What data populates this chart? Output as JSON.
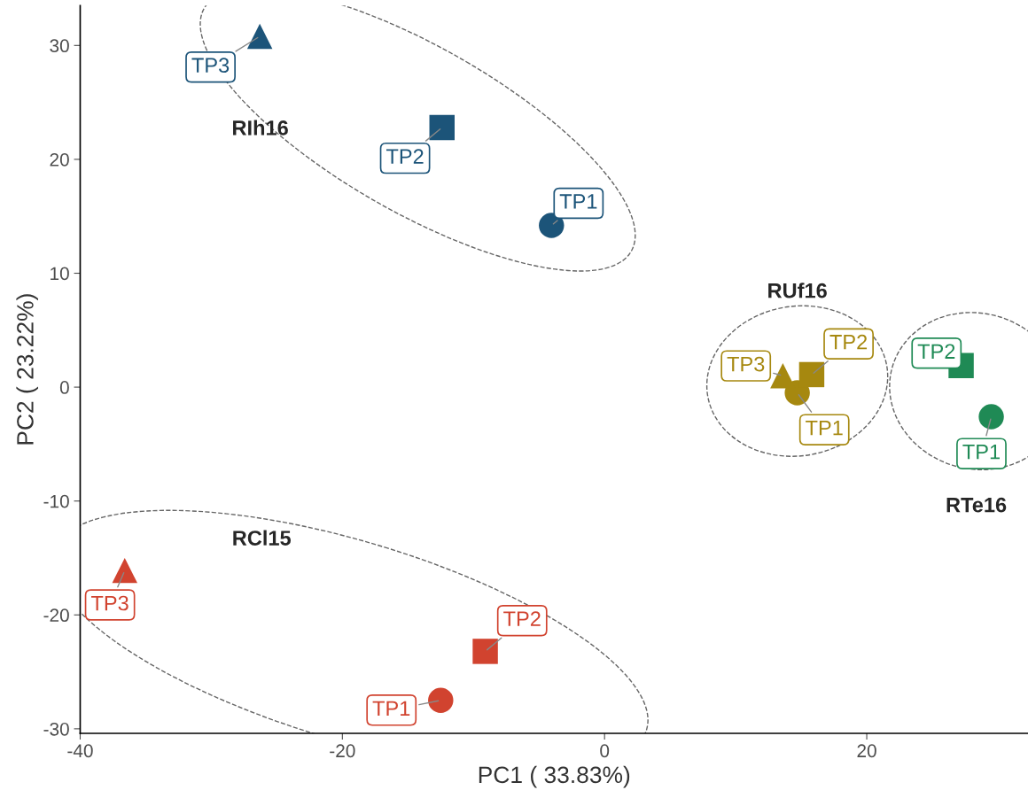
{
  "chart_data": {
    "type": "scatter",
    "xlabel": "PC1 ( 33.83%)",
    "ylabel": "PC2 ( 23.22%)",
    "xlim": [
      -40,
      32.3
    ],
    "ylim": [
      -30.4,
      33.5
    ],
    "xticks": [
      -40,
      -20,
      0,
      20
    ],
    "yticks": [
      -30,
      -20,
      -10,
      0,
      10,
      20,
      30
    ],
    "grid": false,
    "legend": false,
    "annotations": [
      "RIh16",
      "RUf16",
      "RTe16",
      "RCl15"
    ],
    "series": [
      {
        "marker": "circle",
        "x": [
          -4.05,
          14.7,
          29.5,
          -12.5
        ],
        "values": [
          14.2,
          -0.5,
          -2.6,
          -27.5
        ],
        "colors": [
          "#1c5479",
          "#a6880f",
          "#1f8a55",
          "#d1432f"
        ],
        "value_labels": [
          "TP1",
          "TP1",
          "TP1",
          "TP1"
        ]
      },
      {
        "marker": "square",
        "x": [
          -12.4,
          15.8,
          27.2,
          -9.1
        ],
        "values": [
          22.8,
          1.1,
          1.9,
          -23.2
        ],
        "colors": [
          "#1c5479",
          "#a6880f",
          "#1f8a55",
          "#d1432f"
        ],
        "value_labels": [
          "TP2",
          "TP2",
          "TP2",
          "TP2"
        ]
      },
      {
        "marker": "triangle",
        "x": [
          -26.3,
          13.6,
          null,
          -36.6
        ],
        "values": [
          30.8,
          1.0,
          null,
          -16.1
        ],
        "colors": [
          "#1c5479",
          "#a6880f",
          "#1f8a55",
          "#d1432f"
        ],
        "value_labels": [
          "TP3",
          "TP3",
          null,
          "TP3"
        ]
      }
    ]
  }
}
